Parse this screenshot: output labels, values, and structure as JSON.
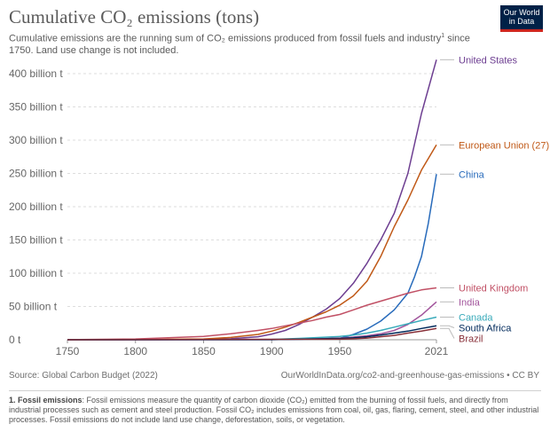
{
  "header": {
    "title": "Cumulative CO₂ emissions (tons)",
    "subtitle_part1": "Cumulative emissions are the running sum of CO₂ emissions produced from fossil fuels and industry",
    "subtitle_sup": "1",
    "subtitle_part2": " since 1750. Land use change is not included.",
    "logo_line1": "Our World",
    "logo_line2": "in Data"
  },
  "footer": {
    "source": "Source: Global Carbon Budget (2022)",
    "attribution": "OurWorldInData.org/co2-and-greenhouse-gas-emissions • CC BY",
    "footnote_label": "1. Fossil emissions",
    "footnote_text": ": Fossil emissions measure the quantity of carbon dioxide (CO₂) emitted from the burning of fossil fuels, and directly from industrial processes such as cement and steel production. Fossil CO₂ includes emissions from coal, oil, gas, flaring, cement, steel, and other industrial processes. Fossil emissions do not include land use change, deforestation, soils, or vegetation."
  },
  "colors": {
    "United States": "#6d3e91",
    "European Union (27)": "#c05917",
    "China": "#286bbb",
    "United Kingdom": "#c15065",
    "India": "#a2559c",
    "Canada": "#38aaba",
    "South Africa": "#00295b",
    "Brazil": "#883039"
  },
  "chart_data": {
    "type": "line",
    "title": "Cumulative CO₂ emissions (tons)",
    "x_ticks": [
      1750,
      1800,
      1850,
      1900,
      1950,
      2021
    ],
    "y_ticks": [
      0,
      50,
      100,
      150,
      200,
      250,
      300,
      350,
      400
    ],
    "y_tick_labels": [
      "0 t",
      "50 billion t",
      "100 billion t",
      "150 billion t",
      "200 billion t",
      "250 billion t",
      "300 billion t",
      "350 billion t",
      "400 billion t"
    ],
    "xlim": [
      1750,
      2021
    ],
    "ylim": [
      0,
      420
    ],
    "y_unit": "billion t",
    "grid": "horizontal dashed",
    "legend": "labels at line ends (right)",
    "series": [
      {
        "name": "United States",
        "x": [
          1750,
          1800,
          1850,
          1870,
          1890,
          1900,
          1910,
          1920,
          1930,
          1940,
          1950,
          1960,
          1970,
          1980,
          1990,
          2000,
          2010,
          2021
        ],
        "values": [
          0,
          0,
          0.4,
          1.5,
          4.5,
          8.5,
          14,
          23,
          34,
          46,
          62,
          85,
          115,
          150,
          190,
          250,
          340,
          421
        ]
      },
      {
        "name": "European Union (27)",
        "x": [
          1750,
          1800,
          1850,
          1870,
          1890,
          1900,
          1910,
          1920,
          1930,
          1940,
          1950,
          1960,
          1970,
          1980,
          1990,
          2000,
          2010,
          2021
        ],
        "values": [
          0,
          0.3,
          1.2,
          3.5,
          8,
          13,
          19,
          26,
          34,
          42,
          52,
          66,
          88,
          125,
          170,
          210,
          255,
          293
        ]
      },
      {
        "name": "China",
        "x": [
          1750,
          1850,
          1900,
          1930,
          1950,
          1960,
          1970,
          1980,
          1990,
          2000,
          2005,
          2010,
          2015,
          2021
        ],
        "values": [
          0,
          0,
          0.1,
          1,
          2,
          8,
          16,
          28,
          45,
          70,
          95,
          125,
          175,
          249
        ]
      },
      {
        "name": "United Kingdom",
        "x": [
          1750,
          1800,
          1850,
          1870,
          1890,
          1900,
          1910,
          1920,
          1930,
          1940,
          1950,
          1960,
          1970,
          1980,
          1990,
          2000,
          2010,
          2021
        ],
        "values": [
          0.1,
          1.2,
          5,
          9,
          14,
          17,
          21,
          25,
          29,
          34,
          38,
          45,
          52,
          58,
          64,
          70,
          75,
          78
        ]
      },
      {
        "name": "India",
        "x": [
          1750,
          1900,
          1920,
          1950,
          1960,
          1970,
          1980,
          1990,
          2000,
          2010,
          2021
        ],
        "values": [
          0,
          0.5,
          1,
          2.5,
          4,
          6,
          9,
          14,
          23,
          37,
          57
        ]
      },
      {
        "name": "Canada",
        "x": [
          1750,
          1900,
          1920,
          1950,
          1960,
          1970,
          1980,
          1990,
          2000,
          2010,
          2021
        ],
        "values": [
          0,
          0.5,
          2,
          5,
          7,
          10,
          14,
          19,
          24,
          29,
          34
        ]
      },
      {
        "name": "South Africa",
        "x": [
          1750,
          1900,
          1920,
          1950,
          1960,
          1970,
          1980,
          1990,
          2000,
          2010,
          2021
        ],
        "values": [
          0,
          0.2,
          0.8,
          2,
          3,
          4.5,
          7,
          10,
          13,
          17,
          21
        ]
      },
      {
        "name": "Brazil",
        "x": [
          1750,
          1950,
          1960,
          1970,
          1980,
          1990,
          2000,
          2010,
          2021
        ],
        "values": [
          0,
          0.8,
          1.5,
          2.5,
          4.5,
          6.5,
          10,
          13,
          17
        ]
      }
    ]
  }
}
